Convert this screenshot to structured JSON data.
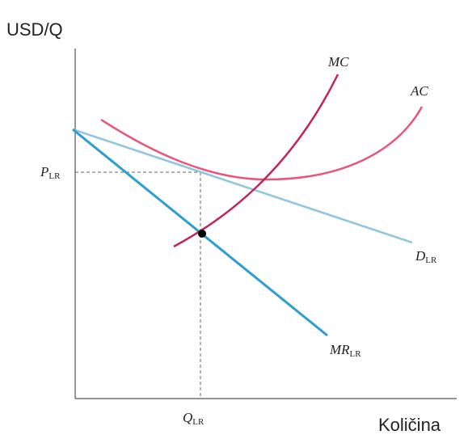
{
  "y_axis_label": "USD/Q",
  "x_axis_label": "Količina",
  "curves": {
    "mc": {
      "main": "MC"
    },
    "ac": {
      "main": "AC"
    },
    "d": {
      "main": "D",
      "sub": "LR"
    },
    "mr": {
      "main": "MR",
      "sub": "LR"
    }
  },
  "price_label": {
    "main": "P",
    "sub": "LR"
  },
  "quantity_label": {
    "main": "Q",
    "sub": "LR"
  }
}
